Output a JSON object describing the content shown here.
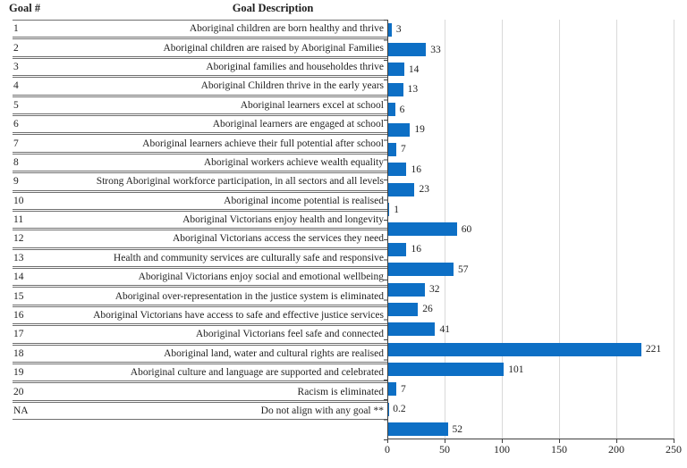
{
  "header": {
    "goal_col": "Goal #",
    "desc_col": "Goal Description"
  },
  "chart_data": {
    "type": "bar",
    "orientation": "horizontal",
    "title": "",
    "xlabel": "",
    "ylabel": "",
    "xlim": [
      0,
      250
    ],
    "x_ticks": [
      0,
      50,
      100,
      150,
      200,
      250
    ],
    "grid": true,
    "bar_color": "#0d6fc5",
    "gridline_color": "#d9d9d9",
    "axis_color": "#404040",
    "categories": [
      "1",
      "2",
      "3",
      "4",
      "5",
      "6",
      "7",
      "8",
      "9",
      "10",
      "11",
      "12",
      "13",
      "14",
      "15",
      "16",
      "17",
      "18",
      "19",
      "20",
      "NA"
    ],
    "labels": [
      "Aboriginal children are born healthy and thrive",
      "Aboriginal children are raised by Aboriginal Families",
      "Aboriginal families and householdes thrive",
      "Aboriginal Children thrive in the early years",
      "Aboriginal learners excel at school",
      "Aboriginal learners are engaged at school",
      "Aboriginal learners achieve their full potential after school",
      "Aboriginal workers achieve wealth equality",
      "Strong Aboriginal workforce participation, in all sectors and all levels",
      "Aboriginal income potential is realised",
      "Aboriginal Victorians enjoy health and longevity",
      "Aboriginal Victorians access the services they need",
      "Health and community services are culturally safe and responsive",
      "Aboriginal Victorians enjoy social and emotional wellbeing",
      "Aboriginal over-representation in the justice system is eliminated",
      "Aboriginal Victorians have access to safe and effective justice services",
      "Aboriginal Victorians feel safe and connected",
      "Aboriginal land, water and cultural rights are realised",
      "Aboriginal culture and language are supported and celebrated",
      "Racism is eliminated",
      "Do not align with any goal **"
    ],
    "values": [
      3,
      33,
      14,
      13,
      6,
      19,
      7,
      16,
      23,
      1,
      60,
      16,
      57,
      32,
      26,
      41,
      221,
      101,
      7,
      0.2,
      52
    ],
    "value_labels": [
      "3",
      "33",
      "14",
      "13",
      "6",
      "19",
      "7",
      "16",
      "23",
      "1",
      "60",
      "16",
      "57",
      "32",
      "26",
      "41",
      "221",
      "101",
      "7",
      "0.2",
      "52"
    ]
  }
}
